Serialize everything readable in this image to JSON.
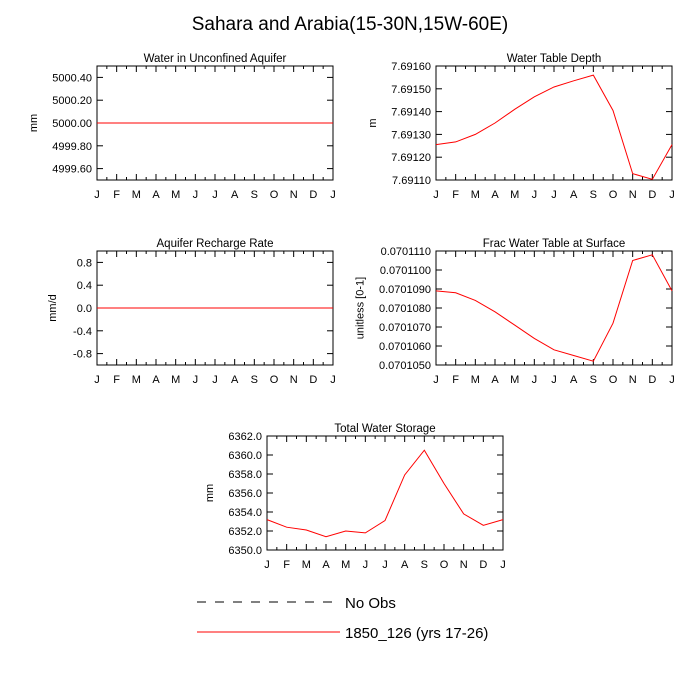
{
  "title": "Sahara and Arabia(15-30N,15W-60E)",
  "colors": {
    "model_line": "#ff0000",
    "obs_line": "#000000",
    "axis": "#000000",
    "background": "#ffffff"
  },
  "legend": {
    "entries": [
      {
        "label": "No Obs",
        "style": "dashed",
        "color": "#000000"
      },
      {
        "label": "1850_126 (yrs 17-26)",
        "style": "solid",
        "color": "#ff0000"
      }
    ]
  },
  "chart_data": [
    {
      "type": "line",
      "title": "Water in Unconfined Aquifer",
      "ylabel": "mm",
      "x": [
        "J",
        "F",
        "M",
        "A",
        "M",
        "J",
        "J",
        "A",
        "S",
        "O",
        "N",
        "D",
        "J"
      ],
      "ylim": [
        4999.5,
        5000.5
      ],
      "yticks": [
        4999.6,
        4999.8,
        5000.0,
        5000.2,
        5000.4
      ],
      "ytick_labels": [
        "4999.60",
        "4999.80",
        "5000.00",
        "5000.20",
        "5000.40"
      ],
      "series": [
        {
          "values": [
            5000,
            5000,
            5000,
            5000,
            5000,
            5000,
            5000,
            5000,
            5000,
            5000,
            5000,
            5000,
            5000
          ]
        }
      ]
    },
    {
      "type": "line",
      "title": "Water Table Depth",
      "ylabel": "m",
      "x": [
        "J",
        "F",
        "M",
        "A",
        "M",
        "J",
        "J",
        "A",
        "S",
        "O",
        "N",
        "D",
        "J"
      ],
      "ylim": [
        7.6911,
        7.6916
      ],
      "yticks": [
        7.6911,
        7.6912,
        7.6913,
        7.6914,
        7.6915,
        7.6916
      ],
      "ytick_labels": [
        "7.69110",
        "7.69120",
        "7.69130",
        "7.69140",
        "7.69150",
        "7.69160"
      ],
      "series": [
        {
          "values": [
            7.691255,
            7.691267,
            7.6913,
            7.69135,
            7.69141,
            7.691465,
            7.691508,
            7.691535,
            7.69156,
            7.691405,
            7.691128,
            7.691103,
            7.691255
          ]
        }
      ]
    },
    {
      "type": "line",
      "title": "Aquifer Recharge Rate",
      "ylabel": "mm/d",
      "x": [
        "J",
        "F",
        "M",
        "A",
        "M",
        "J",
        "J",
        "A",
        "S",
        "O",
        "N",
        "D",
        "J"
      ],
      "ylim": [
        -1.0,
        1.0
      ],
      "yticks": [
        -0.8,
        -0.4,
        0.0,
        0.4,
        0.8
      ],
      "ytick_labels": [
        "-0.8",
        "-0.4",
        "0.0",
        "0.4",
        "0.8"
      ],
      "series": [
        {
          "values": [
            0,
            0,
            0,
            0,
            0,
            0,
            0,
            0,
            0,
            0,
            0,
            0,
            0
          ]
        }
      ]
    },
    {
      "type": "line",
      "title": "Frac Water Table at Surface",
      "ylabel": "unitless [0-1]",
      "x": [
        "J",
        "F",
        "M",
        "A",
        "M",
        "J",
        "J",
        "A",
        "S",
        "O",
        "N",
        "D",
        "J"
      ],
      "ylim": [
        0.070105,
        0.070111
      ],
      "yticks": [
        0.070105,
        0.070106,
        0.070107,
        0.070108,
        0.070109,
        0.07011,
        0.070111
      ],
      "ytick_labels": [
        "0.0701050",
        "0.0701060",
        "0.0701070",
        "0.0701080",
        "0.0701090",
        "0.0701100",
        "0.0701110"
      ],
      "series": [
        {
          "values": [
            0.0701089,
            0.0701088,
            0.0701084,
            0.0701078,
            0.0701071,
            0.0701064,
            0.0701058,
            0.0701055,
            0.0701052,
            0.0701072,
            0.0701105,
            0.0701108,
            0.0701089
          ]
        }
      ]
    },
    {
      "type": "line",
      "title": "Total Water Storage",
      "ylabel": "mm",
      "x": [
        "J",
        "F",
        "M",
        "A",
        "M",
        "J",
        "J",
        "A",
        "S",
        "O",
        "N",
        "D",
        "J"
      ],
      "ylim": [
        6350.0,
        6362.0
      ],
      "yticks": [
        6350,
        6352,
        6354,
        6356,
        6358,
        6360,
        6362
      ],
      "ytick_labels": [
        "6350.0",
        "6352.0",
        "6354.0",
        "6356.0",
        "6358.0",
        "6360.0",
        "6362.0"
      ],
      "series": [
        {
          "values": [
            6353.2,
            6352.4,
            6352.1,
            6351.4,
            6352.0,
            6351.8,
            6353.1,
            6357.9,
            6360.5,
            6357.0,
            6353.8,
            6352.6,
            6353.2
          ]
        }
      ]
    }
  ]
}
